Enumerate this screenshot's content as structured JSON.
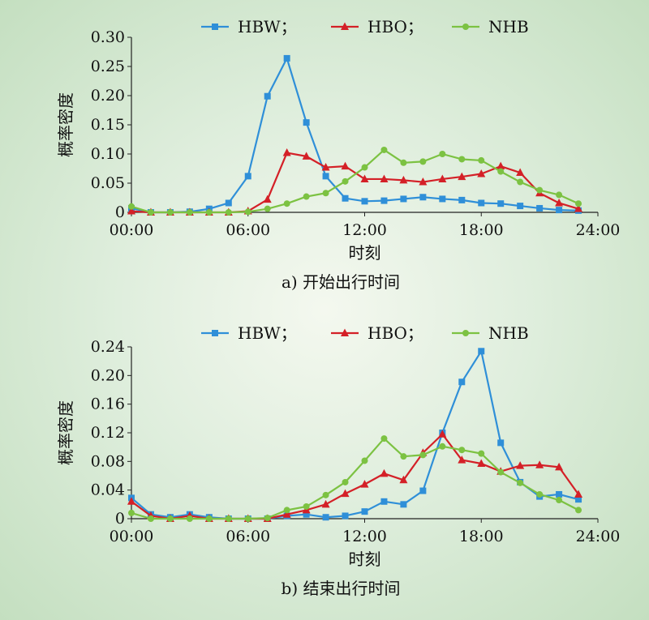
{
  "chart_data": [
    {
      "type": "line",
      "caption": "a) 开始出行时间",
      "xlabel": "时刻",
      "ylabel": "概率密度",
      "xlim": [
        0,
        24
      ],
      "ylim": [
        0,
        0.3
      ],
      "yticks": [
        "0",
        "0.05",
        "0.10",
        "0.15",
        "0.20",
        "0.25",
        "0.30"
      ],
      "xticks": [
        "00:00",
        "06:00",
        "12:00",
        "18:00",
        "24:00"
      ],
      "legend": "top",
      "series": [
        {
          "name": "HBW；",
          "color": "#2f8fd8",
          "marker": "square",
          "x": [
            0,
            1,
            2,
            3,
            4,
            5,
            6,
            7,
            8,
            9,
            10,
            11,
            12,
            13,
            14,
            15,
            16,
            17,
            18,
            19,
            20,
            21,
            22,
            23
          ],
          "values": [
            0.007,
            0.0,
            0.0,
            0.001,
            0.006,
            0.016,
            0.062,
            0.199,
            0.264,
            0.154,
            0.062,
            0.024,
            0.019,
            0.02,
            0.023,
            0.026,
            0.023,
            0.021,
            0.016,
            0.015,
            0.011,
            0.007,
            0.004,
            0.003
          ]
        },
        {
          "name": "HBO；",
          "color": "#d42027",
          "marker": "triangle",
          "x": [
            0,
            1,
            2,
            3,
            4,
            5,
            6,
            7,
            8,
            9,
            10,
            11,
            12,
            13,
            14,
            15,
            16,
            17,
            18,
            19,
            20,
            21,
            22,
            23
          ],
          "values": [
            0.002,
            0.0,
            0.0,
            0.0,
            0.0,
            0.0,
            0.002,
            0.022,
            0.102,
            0.096,
            0.077,
            0.079,
            0.057,
            0.057,
            0.055,
            0.052,
            0.057,
            0.061,
            0.066,
            0.079,
            0.068,
            0.033,
            0.016,
            0.006
          ]
        },
        {
          "name": "NHB",
          "color": "#7cc242",
          "marker": "circle",
          "x": [
            0,
            1,
            2,
            3,
            4,
            5,
            6,
            7,
            8,
            9,
            10,
            11,
            12,
            13,
            14,
            15,
            16,
            17,
            18,
            19,
            20,
            21,
            22,
            23
          ],
          "values": [
            0.01,
            0.0,
            0.0,
            0.0,
            0.0,
            0.0,
            0.001,
            0.006,
            0.015,
            0.027,
            0.033,
            0.053,
            0.077,
            0.107,
            0.085,
            0.087,
            0.1,
            0.091,
            0.089,
            0.07,
            0.052,
            0.038,
            0.03,
            0.015
          ]
        }
      ]
    },
    {
      "type": "line",
      "caption": "b) 结束出行时间",
      "xlabel": "时刻",
      "ylabel": "概率密度",
      "xlim": [
        0,
        24
      ],
      "ylim": [
        0,
        0.24
      ],
      "yticks": [
        "0",
        "0.04",
        "0.08",
        "0.12",
        "0.16",
        "0.20",
        "0.24"
      ],
      "xticks": [
        "00:00",
        "06:00",
        "12:00",
        "18:00",
        "24:00"
      ],
      "legend": "top",
      "series": [
        {
          "name": "HBW；",
          "color": "#2f8fd8",
          "marker": "square",
          "x": [
            0,
            1,
            2,
            3,
            4,
            5,
            6,
            7,
            8,
            9,
            10,
            11,
            12,
            13,
            14,
            15,
            16,
            17,
            18,
            19,
            20,
            21,
            22,
            23
          ],
          "values": [
            0.029,
            0.006,
            0.002,
            0.006,
            0.002,
            0.0,
            0.0,
            0.0,
            0.004,
            0.006,
            0.002,
            0.004,
            0.01,
            0.024,
            0.02,
            0.039,
            0.12,
            0.191,
            0.234,
            0.106,
            0.051,
            0.031,
            0.034,
            0.027
          ]
        },
        {
          "name": "HBO；",
          "color": "#d42027",
          "marker": "triangle",
          "x": [
            0,
            1,
            2,
            3,
            4,
            5,
            6,
            7,
            8,
            9,
            10,
            11,
            12,
            13,
            14,
            15,
            16,
            17,
            18,
            19,
            20,
            21,
            22,
            23
          ],
          "values": [
            0.024,
            0.004,
            0.0,
            0.004,
            0.0,
            0.0,
            0.0,
            0.0,
            0.006,
            0.012,
            0.02,
            0.035,
            0.048,
            0.063,
            0.054,
            0.092,
            0.118,
            0.082,
            0.077,
            0.066,
            0.074,
            0.075,
            0.072,
            0.034
          ]
        },
        {
          "name": "NHB",
          "color": "#7cc242",
          "marker": "circle",
          "x": [
            0,
            1,
            2,
            3,
            4,
            5,
            6,
            7,
            8,
            9,
            10,
            11,
            12,
            13,
            14,
            15,
            16,
            17,
            18,
            19,
            20,
            21,
            22,
            23
          ],
          "values": [
            0.008,
            0.0,
            0.0,
            0.0,
            0.0,
            0.0,
            0.0,
            0.001,
            0.012,
            0.017,
            0.033,
            0.051,
            0.081,
            0.112,
            0.087,
            0.089,
            0.101,
            0.096,
            0.091,
            0.065,
            0.05,
            0.034,
            0.026,
            0.012
          ]
        }
      ]
    }
  ]
}
